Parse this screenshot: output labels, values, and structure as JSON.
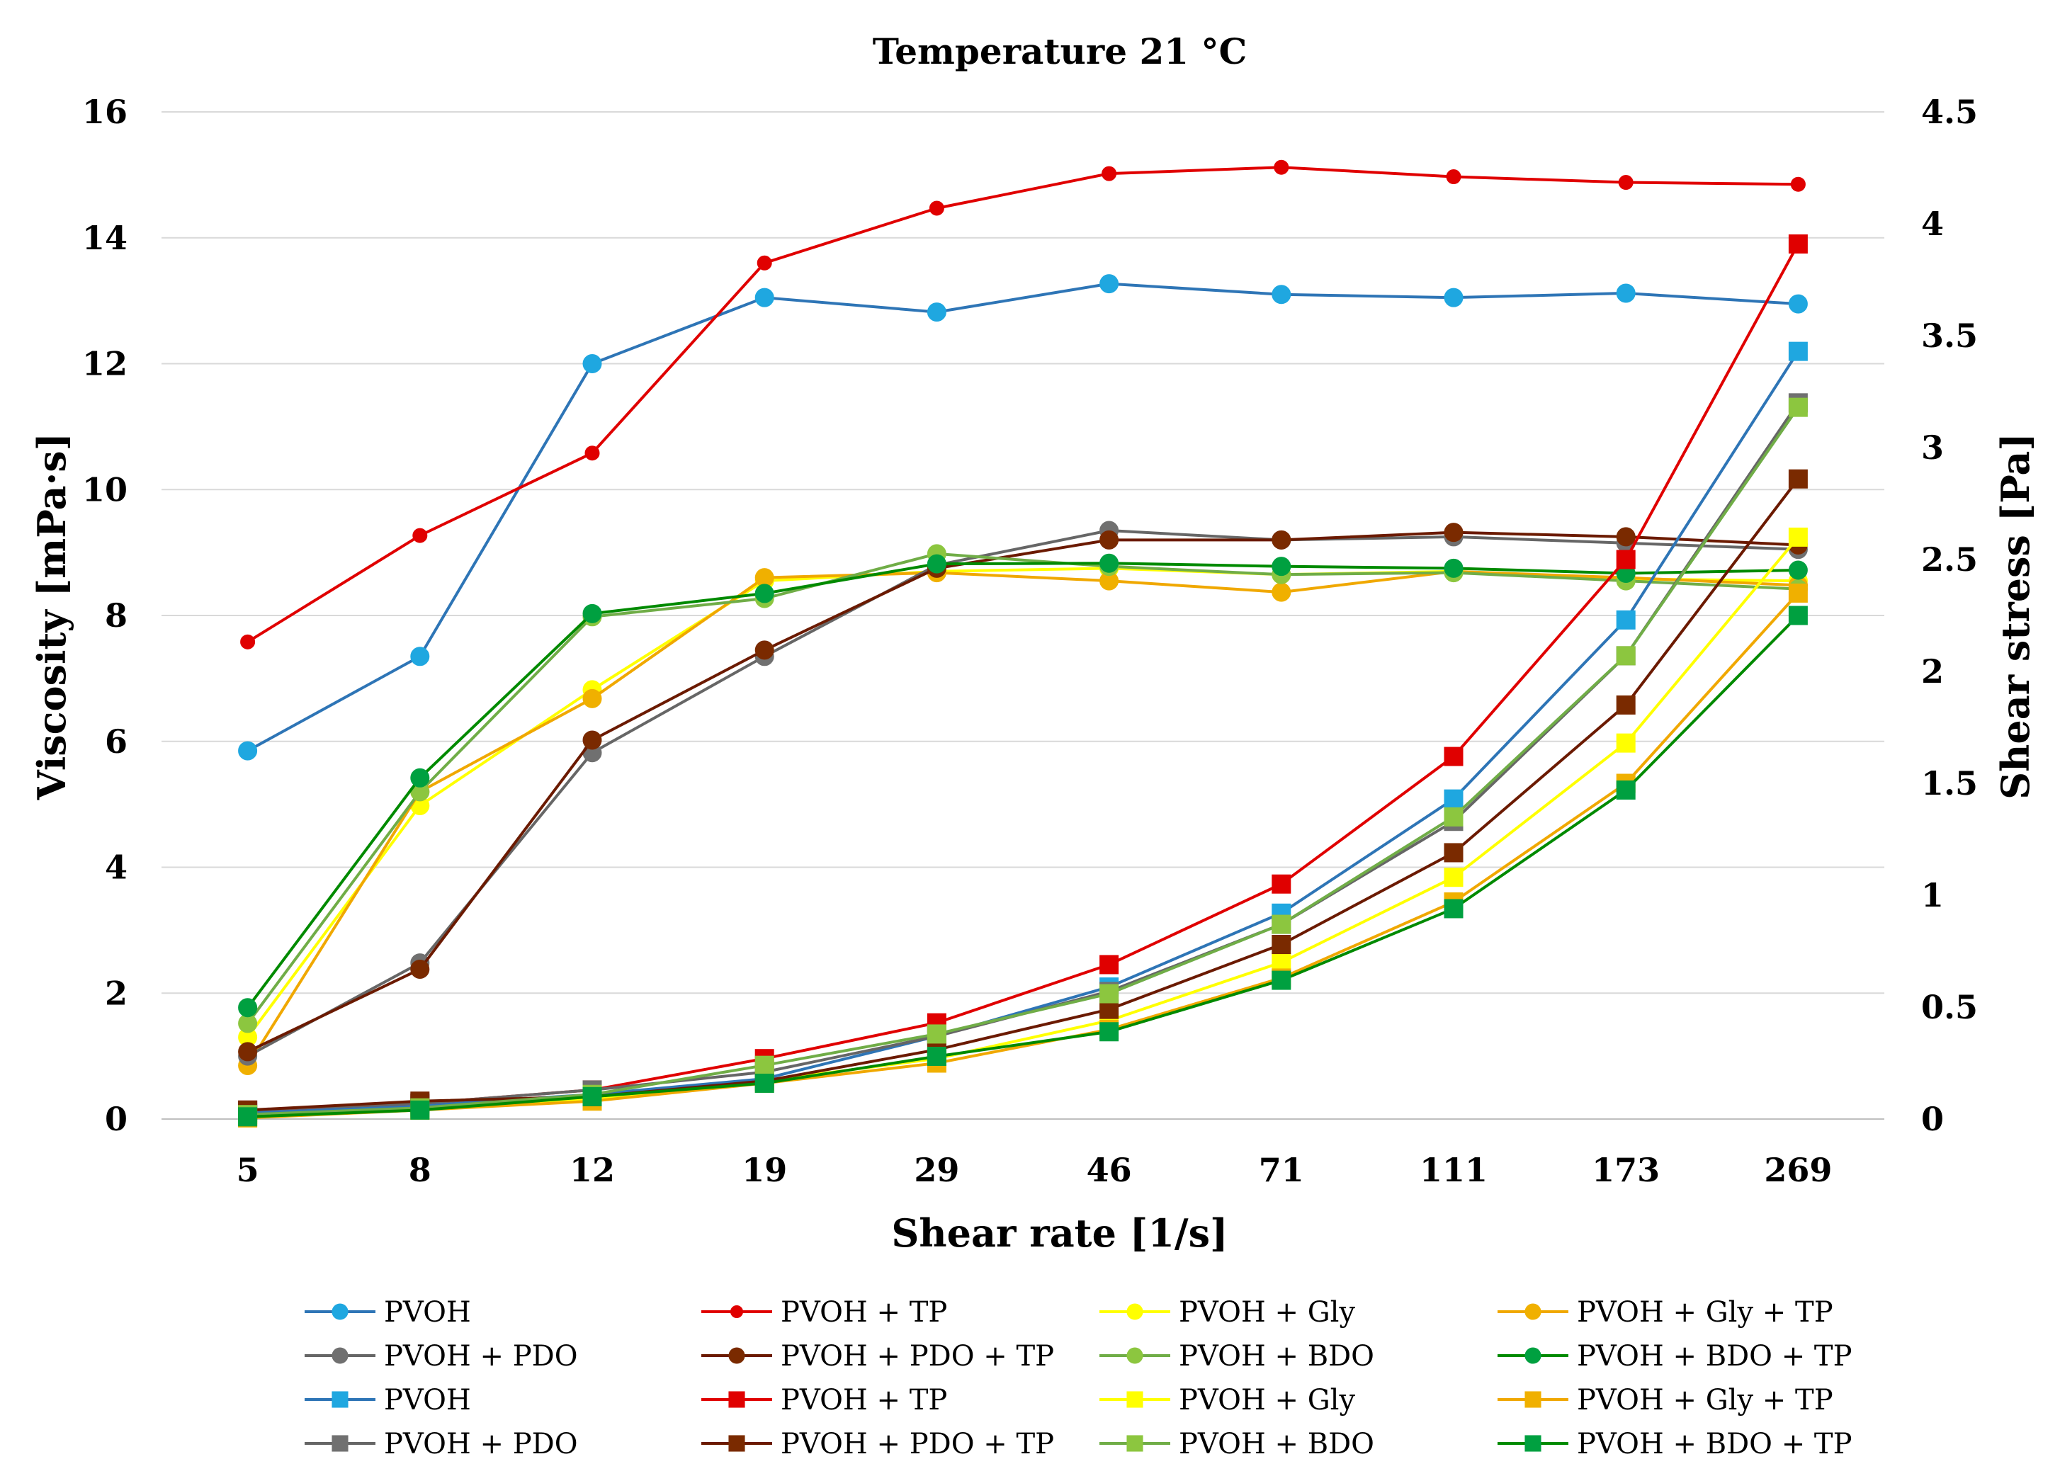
{
  "chart_data": {
    "type": "line",
    "title": "Temperature 21 °C",
    "xlabel": "Shear rate [1/s]",
    "ylabel": "Viscosity [mPa·s]",
    "y2label": "Shear stress [Pa]",
    "categories": [
      "5",
      "8",
      "12",
      "19",
      "29",
      "46",
      "71",
      "111",
      "173",
      "269"
    ],
    "ylim": [
      0,
      16
    ],
    "yticks": [
      "0",
      "2",
      "4",
      "6",
      "8",
      "10",
      "12",
      "14",
      "16"
    ],
    "y2lim": [
      0,
      4.5
    ],
    "y2ticks": [
      "0",
      "0.5",
      "1",
      "1.5",
      "2",
      "2.5",
      "3",
      "3.5",
      "4",
      "4.5"
    ],
    "grid": true,
    "legend_position": "bottom",
    "series": [
      {
        "name": "PVOH",
        "axis": "left",
        "marker": "circle",
        "color": "#2E75B6",
        "marker_color": "#1FA7E0",
        "values": [
          5.85,
          7.35,
          12.0,
          13.05,
          12.82,
          13.27,
          13.1,
          13.05,
          13.12,
          12.95
        ]
      },
      {
        "name": "PVOH + TP",
        "axis": "left",
        "marker": "circle-small",
        "color": "#E00000",
        "marker_color": "#E00000",
        "values": [
          7.58,
          9.27,
          10.58,
          13.6,
          14.47,
          15.02,
          15.12,
          14.97,
          14.88,
          14.85
        ]
      },
      {
        "name": "PVOH + Gly",
        "axis": "left",
        "marker": "circle",
        "color": "#FFFF00",
        "marker_color": "#FFFF00",
        "values": [
          1.3,
          4.98,
          6.82,
          8.55,
          8.7,
          8.75,
          8.65,
          8.7,
          8.58,
          8.55
        ]
      },
      {
        "name": "PVOH + Gly + TP",
        "axis": "left",
        "marker": "circle",
        "color": "#F0A800",
        "marker_color": "#F0B000",
        "values": [
          0.85,
          5.2,
          6.68,
          8.6,
          8.68,
          8.55,
          8.37,
          8.7,
          8.6,
          8.48
        ]
      },
      {
        "name": "PVOH + PDO",
        "axis": "left",
        "marker": "circle",
        "color": "#666666",
        "marker_color": "#707070",
        "values": [
          1.0,
          2.48,
          5.82,
          7.35,
          8.8,
          9.35,
          9.2,
          9.25,
          9.15,
          9.05
        ]
      },
      {
        "name": " PVOH + PDO + TP",
        "axis": "left",
        "marker": "circle",
        "color": "#6B1A00",
        "marker_color": "#7A2A00",
        "values": [
          1.07,
          2.38,
          6.02,
          7.45,
          8.75,
          9.2,
          9.2,
          9.32,
          9.25,
          9.12
        ]
      },
      {
        "name": "PVOH + BDO",
        "axis": "left",
        "marker": "circle",
        "color": "#70AD47",
        "marker_color": "#8CC63F",
        "values": [
          1.52,
          5.2,
          7.98,
          8.27,
          8.98,
          8.78,
          8.65,
          8.68,
          8.55,
          8.42
        ]
      },
      {
        "name": "PVOH + BDO + TP",
        "axis": "left",
        "marker": "circle",
        "color": "#008A00",
        "marker_color": "#00A040",
        "values": [
          1.77,
          5.42,
          8.03,
          8.35,
          8.82,
          8.83,
          8.78,
          8.75,
          8.67,
          8.72
        ]
      },
      {
        "name": "PVOH",
        "axis": "right",
        "marker": "square",
        "color": "#2E75B6",
        "marker_color": "#1FA7E0",
        "values": [
          0.03,
          0.06,
          0.11,
          0.18,
          0.37,
          0.59,
          0.92,
          1.43,
          2.23,
          3.43
        ]
      },
      {
        "name": "PVOH + TP",
        "axis": "right",
        "marker": "square",
        "color": "#E00000",
        "marker_color": "#E00000",
        "values": [
          0.04,
          0.07,
          0.13,
          0.27,
          0.43,
          0.69,
          1.05,
          1.62,
          2.5,
          3.91
        ]
      },
      {
        "name": "PVOH + Gly",
        "axis": "right",
        "marker": "square",
        "color": "#FFFF00",
        "marker_color": "#FFFF00",
        "values": [
          0.01,
          0.04,
          0.09,
          0.17,
          0.27,
          0.44,
          0.7,
          1.08,
          1.68,
          2.6
        ]
      },
      {
        "name": "PVOH + Gly + TP",
        "axis": "right",
        "marker": "square",
        "color": "#F0A800",
        "marker_color": "#F0B000",
        "values": [
          0.005,
          0.04,
          0.08,
          0.16,
          0.25,
          0.4,
          0.63,
          0.97,
          1.5,
          2.35
        ]
      },
      {
        "name": "PVOH + PDO",
        "axis": "right",
        "marker": "square",
        "color": "#666666",
        "marker_color": "#707070",
        "values": [
          0.04,
          0.07,
          0.13,
          0.21,
          0.37,
          0.57,
          0.87,
          1.33,
          2.07,
          3.2
        ]
      },
      {
        "name": " PVOH + PDO + TP",
        "axis": "right",
        "marker": "square",
        "color": "#6B1A00",
        "marker_color": "#7A2A00",
        "values": [
          0.04,
          0.08,
          0.1,
          0.17,
          0.31,
          0.49,
          0.78,
          1.19,
          1.85,
          2.86
        ]
      },
      {
        "name": "PVOH + BDO",
        "axis": "right",
        "marker": "square",
        "color": "#70AD47",
        "marker_color": "#8CC63F",
        "values": [
          0.02,
          0.05,
          0.11,
          0.24,
          0.38,
          0.56,
          0.87,
          1.35,
          2.07,
          3.18
        ]
      },
      {
        "name": "PVOH + BDO + TP",
        "axis": "right",
        "marker": "square",
        "color": "#008A00",
        "marker_color": "#00A040",
        "values": [
          0.01,
          0.04,
          0.1,
          0.16,
          0.28,
          0.39,
          0.62,
          0.94,
          1.47,
          2.25
        ]
      }
    ]
  }
}
